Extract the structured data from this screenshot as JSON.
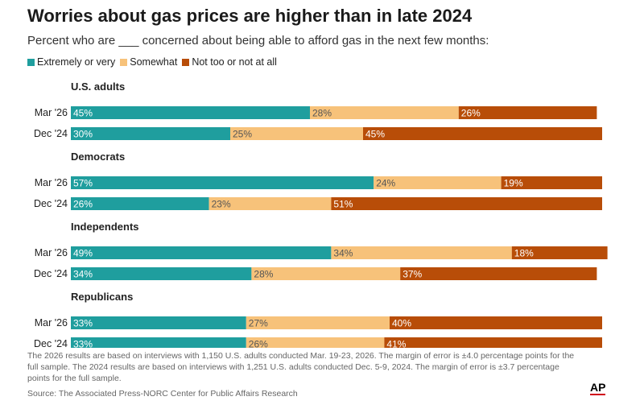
{
  "title": "Worries about gas prices are higher than in late 2024",
  "subtitle": "Percent who are ___ concerned about being able to afford gas in the next few months:",
  "legend": [
    {
      "label": "Extremely or very",
      "color": "#1f9e9e"
    },
    {
      "label": "Somewhat",
      "color": "#f7c27a"
    },
    {
      "label": "Not too or not at all",
      "color": "#b84d08"
    }
  ],
  "chart_data": {
    "type": "bar",
    "orientation": "horizontal",
    "stacked": true,
    "title": "Worries about gas prices are higher than in late 2024",
    "series": [
      {
        "name": "Extremely or very",
        "color": "#1f9e9e"
      },
      {
        "name": "Somewhat",
        "color": "#f7c27a"
      },
      {
        "name": "Not too or not at all",
        "color": "#b84d08"
      }
    ],
    "xlim": [
      0,
      100
    ],
    "groups": [
      {
        "name": "U.S. adults",
        "rows": [
          {
            "label": "Mar '26",
            "values": [
              45,
              28,
              26
            ]
          },
          {
            "label": "Dec '24",
            "values": [
              30,
              25,
              45
            ]
          }
        ]
      },
      {
        "name": "Democrats",
        "rows": [
          {
            "label": "Mar '26",
            "values": [
              57,
              24,
              19
            ]
          },
          {
            "label": "Dec '24",
            "values": [
              26,
              23,
              51
            ]
          }
        ]
      },
      {
        "name": "Independents",
        "rows": [
          {
            "label": "Mar '26",
            "values": [
              49,
              34,
              18
            ]
          },
          {
            "label": "Dec '24",
            "values": [
              34,
              28,
              37
            ]
          }
        ]
      },
      {
        "name": "Republicans",
        "rows": [
          {
            "label": "Mar '26",
            "values": [
              33,
              27,
              40
            ]
          },
          {
            "label": "Dec '24",
            "values": [
              33,
              26,
              41
            ]
          }
        ]
      }
    ]
  },
  "footnote": "The 2026 results are based on interviews with 1,150 U.S. adults conducted Mar. 19-23, 2026. The margin of error is ±4.0 percentage points for the full sample. The 2024 results are based on interviews with 1,251 U.S. adults conducted Dec. 5-9, 2024. The margin of error is ±3.7 percentage points for the full sample.",
  "source": "Source: The Associated Press-NORC Center for Public Affairs Research",
  "logo": "AP"
}
